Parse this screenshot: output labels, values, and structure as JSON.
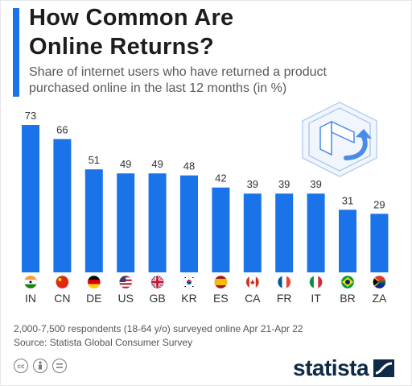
{
  "header": {
    "title_line1": "How Common Are",
    "title_line2": "Online Returns?",
    "subtitle_line1": "Share of internet users who have returned a product",
    "subtitle_line2": "purchased online in the last 12 months (in %)"
  },
  "chart_data": {
    "type": "bar",
    "categories": [
      "IN",
      "CN",
      "DE",
      "US",
      "GB",
      "KR",
      "ES",
      "CA",
      "FR",
      "IT",
      "BR",
      "ZA"
    ],
    "values": [
      73,
      66,
      51,
      49,
      49,
      48,
      42,
      39,
      39,
      39,
      31,
      29
    ],
    "ylim": [
      0,
      75
    ],
    "grid": false,
    "bar_color": "#1a73e8"
  },
  "footer": {
    "note": "2,000-7,500 respondents (18-64 y/o) surveyed online Apr 21-Apr 22",
    "source": "Source: Statista Global Consumer Survey",
    "license_icons": [
      "creative-commons-icon",
      "attribution-icon",
      "no-derivatives-icon"
    ],
    "brand": "statista"
  },
  "decoration": {
    "illustration": "return-box-icon",
    "accent": "#1a73e8"
  }
}
